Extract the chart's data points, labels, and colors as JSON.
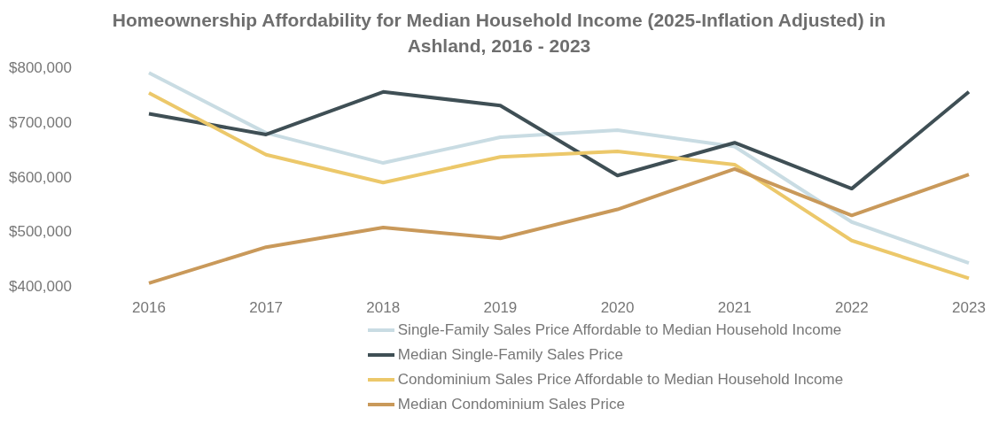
{
  "chart_data": {
    "type": "line",
    "title": "Homeownership Affordability for Median Household Income (2025-Inflation Adjusted) in Ashland, 2016 - 2023",
    "categories": [
      "2016",
      "2017",
      "2018",
      "2019",
      "2020",
      "2021",
      "2022",
      "2023"
    ],
    "series": [
      {
        "name": "Single-Family Sales Price Affordable to Median Household Income",
        "color": "#c9dce3",
        "values": [
          790000,
          680000,
          625000,
          672000,
          685000,
          655000,
          517000,
          442000
        ]
      },
      {
        "name": "Median Single-Family Sales Price",
        "color": "#3f4f55",
        "values": [
          715000,
          677000,
          755000,
          730000,
          602000,
          662000,
          578000,
          755000
        ]
      },
      {
        "name": "Condominium Sales Price Affordable to Median Household Income",
        "color": "#ecc86a",
        "values": [
          753000,
          640000,
          589000,
          636000,
          646000,
          622000,
          483000,
          414000
        ]
      },
      {
        "name": "Median Condominium Sales Price",
        "color": "#c9995a",
        "values": [
          405000,
          471000,
          507000,
          487000,
          540000,
          614000,
          529000,
          604000
        ]
      }
    ],
    "ylim": [
      400000,
      800000
    ],
    "yticks": [
      {
        "value": 400000,
        "label": "$400,000"
      },
      {
        "value": 500000,
        "label": "$500,000"
      },
      {
        "value": 600000,
        "label": "$600,000"
      },
      {
        "value": 700000,
        "label": "$700,000"
      },
      {
        "value": 800000,
        "label": "$800,000"
      }
    ],
    "grid": false,
    "legend": "bottom",
    "marker": "none",
    "line_style": "solid"
  }
}
